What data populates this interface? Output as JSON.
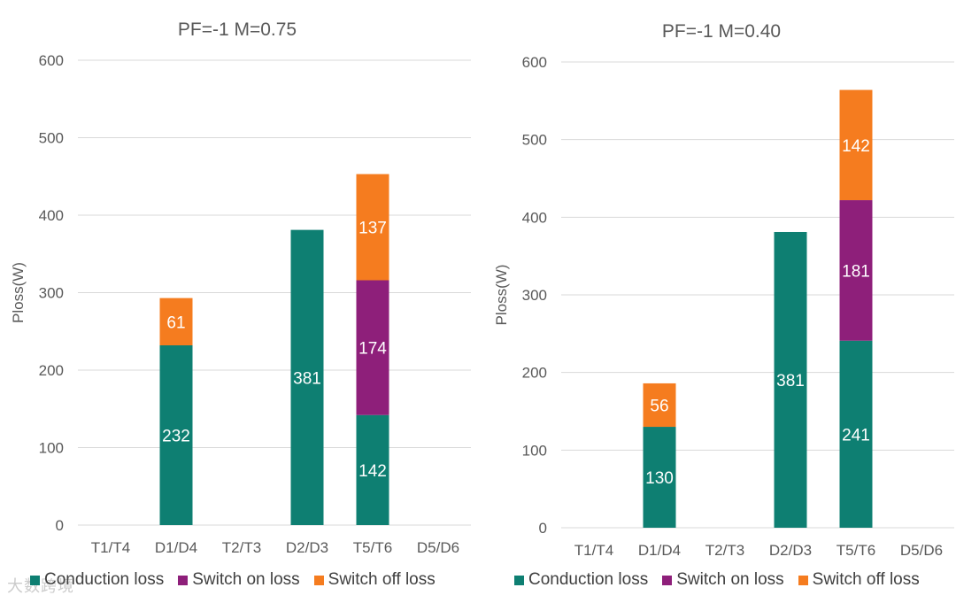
{
  "colors": {
    "conduction": "#0e7f72",
    "switch_on": "#8e1f7a",
    "switch_off": "#f57c1f",
    "grid": "#d9d9d9",
    "axis_text": "#595959"
  },
  "watermark": "大数跨境",
  "chart_data": [
    {
      "type": "bar",
      "stacked": true,
      "title": "PF=-1  M=0.75",
      "ylabel": "Ploss(W)",
      "xlabel": "",
      "ylim": [
        0,
        600
      ],
      "yticks": [
        0,
        100,
        200,
        300,
        400,
        500,
        600
      ],
      "grid": true,
      "legend": "bottom",
      "categories": [
        "T1/T4",
        "D1/D4",
        "T2/T3",
        "D2/D3",
        "T5/T6",
        "D5/D6"
      ],
      "series": [
        {
          "name": "Conduction loss",
          "key": "conduction",
          "values": [
            0,
            232,
            0,
            381,
            142,
            0
          ]
        },
        {
          "name": "Switch on loss",
          "key": "switch_on",
          "values": [
            0,
            0,
            0,
            0,
            174,
            0
          ]
        },
        {
          "name": "Switch off loss",
          "key": "switch_off",
          "values": [
            0,
            61,
            0,
            0,
            137,
            0
          ]
        }
      ]
    },
    {
      "type": "bar",
      "stacked": true,
      "title": "PF=-1  M=0.40",
      "ylabel": "Ploss(W)",
      "xlabel": "",
      "ylim": [
        0,
        600
      ],
      "yticks": [
        0,
        100,
        200,
        300,
        400,
        500,
        600
      ],
      "grid": true,
      "legend": "bottom",
      "categories": [
        "T1/T4",
        "D1/D4",
        "T2/T3",
        "D2/D3",
        "T5/T6",
        "D5/D6"
      ],
      "series": [
        {
          "name": "Conduction loss",
          "key": "conduction",
          "values": [
            0,
            130,
            0,
            381,
            241,
            0
          ]
        },
        {
          "name": "Switch on loss",
          "key": "switch_on",
          "values": [
            0,
            0,
            0,
            0,
            181,
            0
          ]
        },
        {
          "name": "Switch off loss",
          "key": "switch_off",
          "values": [
            0,
            56,
            0,
            0,
            142,
            0
          ]
        }
      ]
    }
  ]
}
